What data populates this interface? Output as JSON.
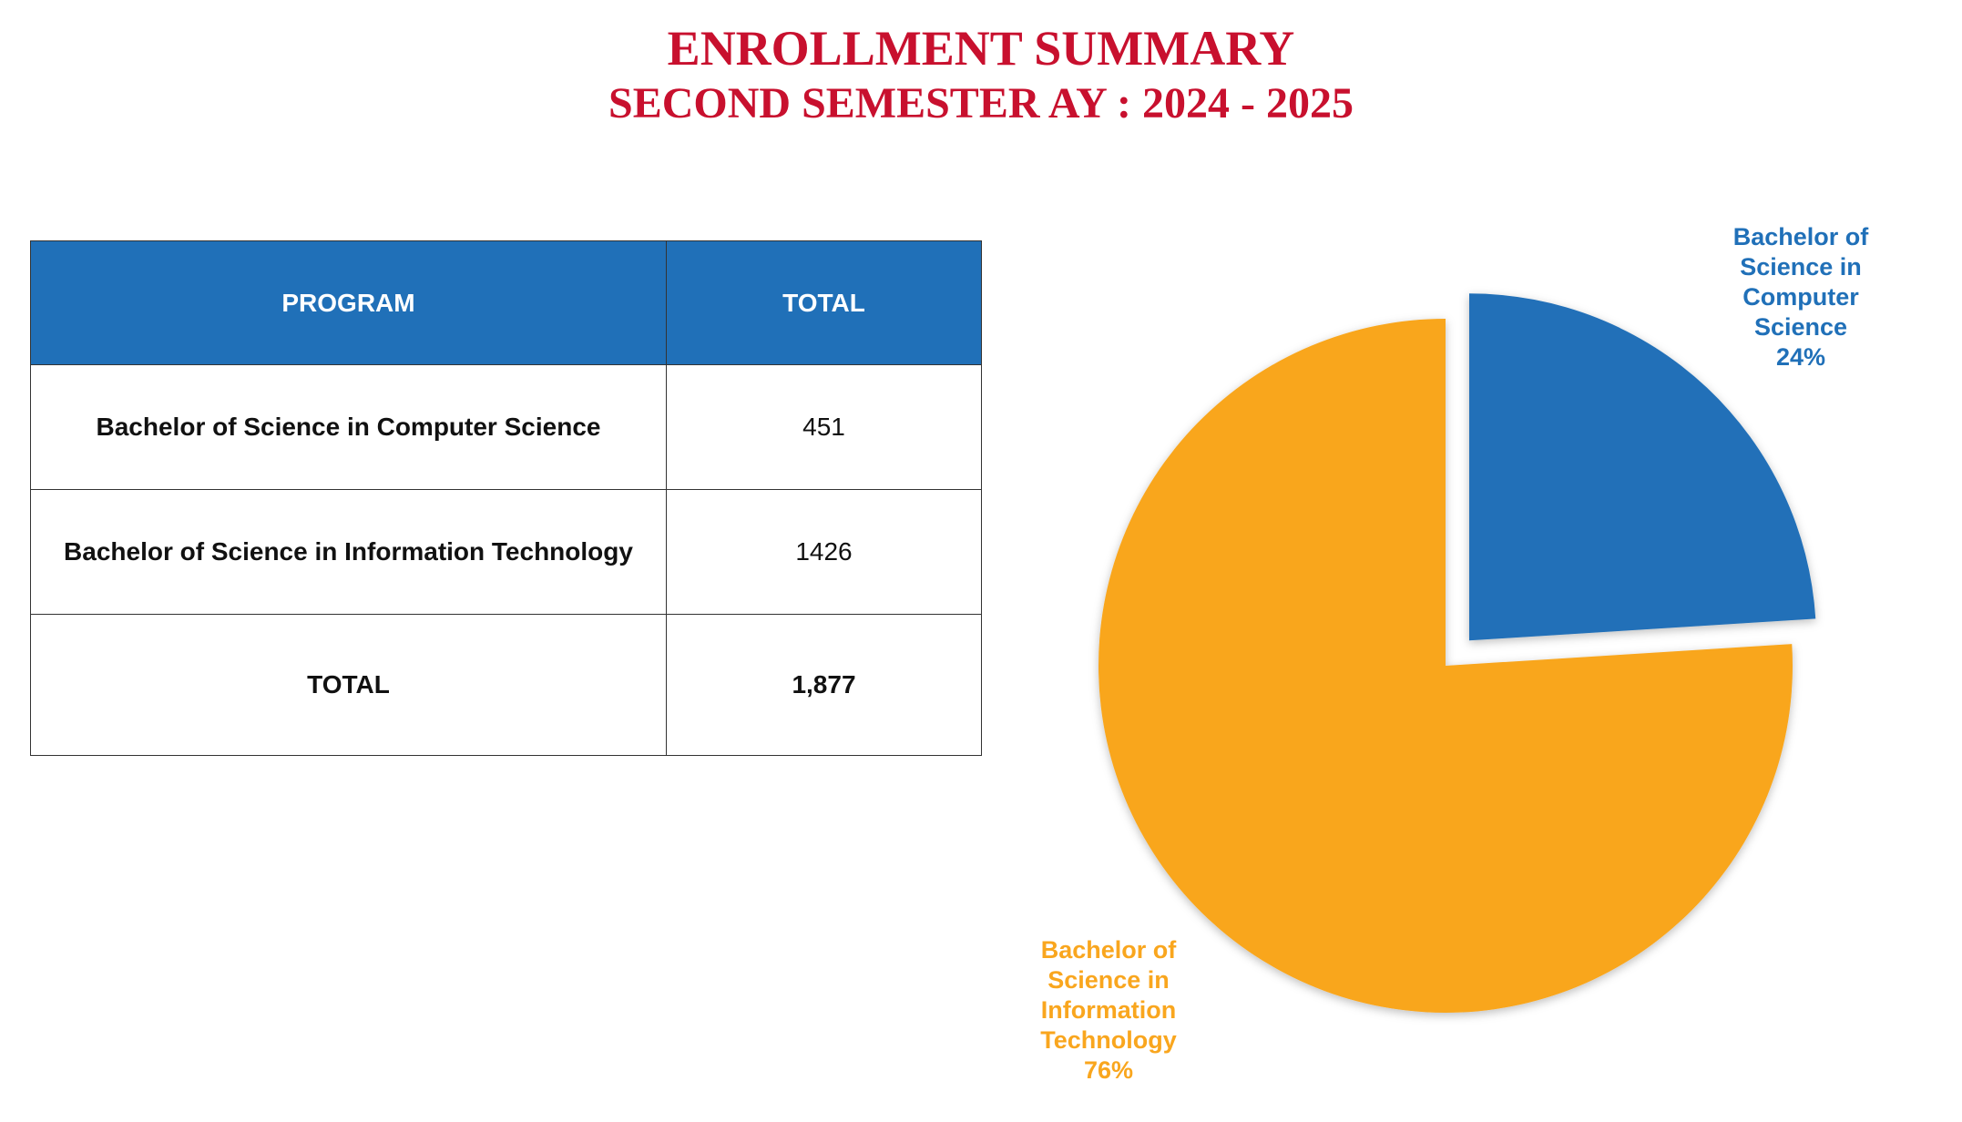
{
  "header": {
    "title": "ENROLLMENT SUMMARY",
    "subtitle": "SECOND SEMESTER AY : 2024 - 2025"
  },
  "table": {
    "columns": [
      "PROGRAM",
      "TOTAL"
    ],
    "rows": [
      [
        "Bachelor of Science in Computer Science",
        "451"
      ],
      [
        "Bachelor of Science in Information Technology",
        "1426"
      ],
      [
        "TOTAL",
        "1,877"
      ]
    ]
  },
  "chart_data": {
    "type": "pie",
    "categories": [
      "Bachelor of Science in Computer Science",
      "Bachelor of Science in Information Technology"
    ],
    "values": [
      24,
      76
    ],
    "value_labels": [
      "24%",
      "76%"
    ],
    "colors": [
      "#2070b8",
      "#f9a61e"
    ]
  }
}
